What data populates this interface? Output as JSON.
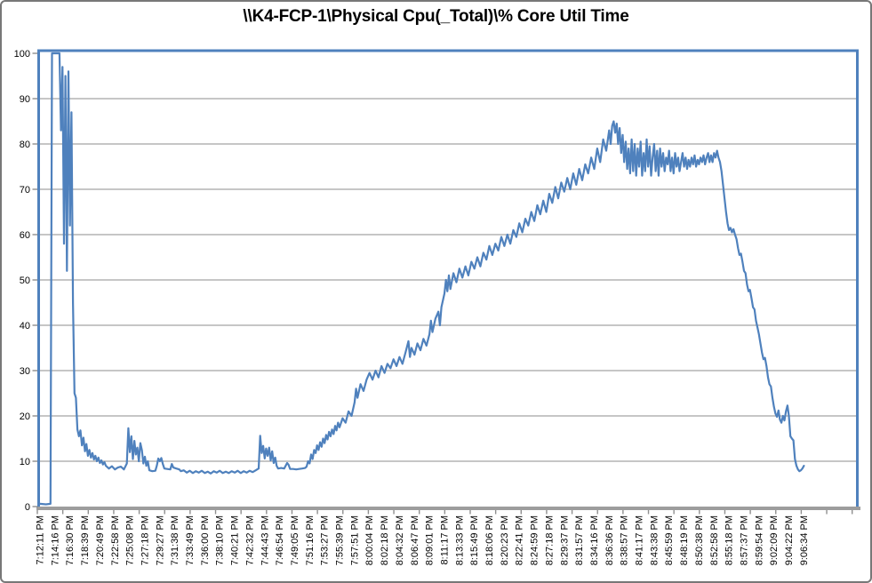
{
  "colors": {
    "series": "#4F81BD",
    "plot_border": "#4F81BD",
    "gridline": "#A3A3A3",
    "axis_bar": "#9D9D9D",
    "tick": "#8F8F8F",
    "outer_border": "#777777",
    "text": "#000000",
    "background": "#FFFFFF"
  },
  "chart_data": {
    "type": "line",
    "title": "\\\\K4-FCP-1\\Physical Cpu(_Total)\\% Core Util Time",
    "xlabel": "",
    "ylabel": "",
    "legend": "none",
    "grid": true,
    "ylim": [
      0,
      100
    ],
    "ytick_step": 10,
    "yticks": [
      0,
      10,
      20,
      30,
      40,
      50,
      60,
      70,
      80,
      90,
      100
    ],
    "x_labels": [
      "7:12:11 PM",
      "7:14:16 PM",
      "7:16:30 PM",
      "7:18:39 PM",
      "7:20:49 PM",
      "7:22:58 PM",
      "7:25:08 PM",
      "7:27:18 PM",
      "7:29:27 PM",
      "7:31:38 PM",
      "7:33:49 PM",
      "7:36:00 PM",
      "7:38:10 PM",
      "7:40:21 PM",
      "7:42:32 PM",
      "7:44:43 PM",
      "7:46:54 PM",
      "7:49:05 PM",
      "7:51:16 PM",
      "7:53:27 PM",
      "7:55:39 PM",
      "7:57:51 PM",
      "8:00:04 PM",
      "8:02:18 PM",
      "8:04:32 PM",
      "8:06:47 PM",
      "8:09:01 PM",
      "8:11:17 PM",
      "8:13:33 PM",
      "8:15:49 PM",
      "8:18:06 PM",
      "8:20:23 PM",
      "8:22:41 PM",
      "8:24:59 PM",
      "8:27:18 PM",
      "8:29:37 PM",
      "8:31:57 PM",
      "8:34:16 PM",
      "8:36:36 PM",
      "8:38:57 PM",
      "8:41:17 PM",
      "8:43:38 PM",
      "8:45:59 PM",
      "8:48:19 PM",
      "8:50:38 PM",
      "8:52:58 PM",
      "8:55:18 PM",
      "8:57:37 PM",
      "8:59:54 PM",
      "9:02:09 PM",
      "9:04:22 PM",
      "9:06:34 PM"
    ],
    "points_per_label_interval": 10,
    "total_category_span": 547,
    "x_tick_mark_interval_categories": 17,
    "points": [
      [
        0,
        0.6
      ],
      [
        4,
        0.5
      ],
      [
        7,
        0.6
      ],
      [
        8,
        100
      ],
      [
        13,
        100
      ],
      [
        14,
        83
      ],
      [
        15,
        97
      ],
      [
        16,
        58
      ],
      [
        17,
        95
      ],
      [
        18,
        52
      ],
      [
        19,
        96
      ],
      [
        20,
        62
      ],
      [
        21,
        87
      ],
      [
        22,
        45
      ],
      [
        23,
        25
      ],
      [
        24,
        24
      ],
      [
        25,
        17
      ],
      [
        26,
        15.5
      ],
      [
        27,
        16.8
      ],
      [
        28,
        13.5
      ],
      [
        29,
        15.2
      ],
      [
        30,
        12.2
      ],
      [
        31,
        13.8
      ],
      [
        32,
        11.2
      ],
      [
        33,
        12.5
      ],
      [
        34,
        10.8
      ],
      [
        35,
        11.8
      ],
      [
        36,
        10.4
      ],
      [
        37,
        11.2
      ],
      [
        38,
        10
      ],
      [
        39,
        10.8
      ],
      [
        40,
        9.6
      ],
      [
        41,
        10.2
      ],
      [
        42,
        9.3
      ],
      [
        43,
        9.8
      ],
      [
        44,
        9
      ],
      [
        46,
        8.4
      ],
      [
        48,
        8.9
      ],
      [
        50,
        8.2
      ],
      [
        52,
        8.6
      ],
      [
        54,
        8.8
      ],
      [
        56,
        8.2
      ],
      [
        58,
        9.5
      ],
      [
        59,
        17.3
      ],
      [
        60,
        12
      ],
      [
        61,
        15.5
      ],
      [
        62,
        10.5
      ],
      [
        63,
        14.5
      ],
      [
        64,
        11.5
      ],
      [
        65,
        13
      ],
      [
        66,
        10
      ],
      [
        67,
        14
      ],
      [
        68,
        12.5
      ],
      [
        69,
        9.5
      ],
      [
        70,
        11
      ],
      [
        71,
        9
      ],
      [
        72,
        10
      ],
      [
        73,
        8
      ],
      [
        75,
        7.8
      ],
      [
        77,
        7.9
      ],
      [
        78,
        9
      ],
      [
        79,
        10.6
      ],
      [
        80,
        10
      ],
      [
        81,
        10.7
      ],
      [
        82,
        9.4
      ],
      [
        83,
        8.4
      ],
      [
        85,
        8.3
      ],
      [
        87,
        8.2
      ],
      [
        88,
        9.4
      ],
      [
        89,
        8.6
      ],
      [
        91,
        8.4
      ],
      [
        93,
        8.2
      ],
      [
        94,
        7.8
      ],
      [
        96,
        8
      ],
      [
        98,
        7.5
      ],
      [
        100,
        7.9
      ],
      [
        102,
        7.4
      ],
      [
        104,
        7.8
      ],
      [
        106,
        7.5
      ],
      [
        108,
        7.9
      ],
      [
        110,
        7.4
      ],
      [
        112,
        7.7
      ],
      [
        114,
        7.3
      ],
      [
        116,
        7.8
      ],
      [
        118,
        7.5
      ],
      [
        120,
        7.9
      ],
      [
        122,
        7.4
      ],
      [
        124,
        7.7
      ],
      [
        126,
        7.4
      ],
      [
        128,
        7.8
      ],
      [
        130,
        7.5
      ],
      [
        132,
        7.9
      ],
      [
        134,
        7.4
      ],
      [
        136,
        7.8
      ],
      [
        138,
        7.5
      ],
      [
        140,
        7.9
      ],
      [
        142,
        7.6
      ],
      [
        144,
        8
      ],
      [
        145,
        8.2
      ],
      [
        146,
        8.4
      ],
      [
        147,
        15.6
      ],
      [
        148,
        11.8
      ],
      [
        149,
        13.4
      ],
      [
        150,
        10.6
      ],
      [
        151,
        12.8
      ],
      [
        152,
        11.2
      ],
      [
        153,
        13
      ],
      [
        154,
        10.2
      ],
      [
        155,
        12.2
      ],
      [
        156,
        9.6
      ],
      [
        157,
        10.8
      ],
      [
        158,
        9
      ],
      [
        159,
        8.4
      ],
      [
        161,
        8.5
      ],
      [
        163,
        8.4
      ],
      [
        165,
        9.6
      ],
      [
        166,
        9.2
      ],
      [
        167,
        8.3
      ],
      [
        169,
        8.3
      ],
      [
        171,
        8.2
      ],
      [
        173,
        8.3
      ],
      [
        175,
        8.4
      ],
      [
        177,
        8.5
      ],
      [
        178,
        8.8
      ],
      [
        179,
        10
      ],
      [
        180,
        9.5
      ],
      [
        181,
        11.5
      ],
      [
        182,
        10.5
      ],
      [
        183,
        12.5
      ],
      [
        184,
        11.8
      ],
      [
        185,
        13.5
      ],
      [
        186,
        12.5
      ],
      [
        187,
        14.2
      ],
      [
        188,
        13.2
      ],
      [
        189,
        15
      ],
      [
        190,
        14
      ],
      [
        191,
        15.8
      ],
      [
        192,
        14.8
      ],
      [
        193,
        16.5
      ],
      [
        194,
        15.5
      ],
      [
        195,
        17
      ],
      [
        196,
        16
      ],
      [
        197,
        17.8
      ],
      [
        198,
        16.8
      ],
      [
        199,
        18.5
      ],
      [
        200,
        17.5
      ],
      [
        202,
        19.5
      ],
      [
        204,
        18.5
      ],
      [
        206,
        21
      ],
      [
        208,
        20
      ],
      [
        210,
        23
      ],
      [
        211,
        26
      ],
      [
        212,
        24
      ],
      [
        214,
        27
      ],
      [
        216,
        25.5
      ],
      [
        218,
        28
      ],
      [
        220,
        29.5
      ],
      [
        222,
        28
      ],
      [
        224,
        30
      ],
      [
        226,
        28.5
      ],
      [
        228,
        31
      ],
      [
        230,
        29.5
      ],
      [
        232,
        31.5
      ],
      [
        234,
        30.5
      ],
      [
        236,
        32.5
      ],
      [
        238,
        31
      ],
      [
        240,
        33
      ],
      [
        242,
        31.5
      ],
      [
        244,
        34
      ],
      [
        246,
        36.5
      ],
      [
        247,
        33
      ],
      [
        248,
        35
      ],
      [
        250,
        33.5
      ],
      [
        252,
        36
      ],
      [
        254,
        34.5
      ],
      [
        256,
        37
      ],
      [
        258,
        35.5
      ],
      [
        260,
        38
      ],
      [
        261,
        41
      ],
      [
        262,
        38.5
      ],
      [
        264,
        41.5
      ],
      [
        266,
        43
      ],
      [
        267,
        40
      ],
      [
        268,
        44
      ],
      [
        270,
        47
      ],
      [
        271,
        50
      ],
      [
        272,
        47.5
      ],
      [
        273,
        51
      ],
      [
        274,
        48
      ],
      [
        276,
        51.5
      ],
      [
        278,
        49.5
      ],
      [
        280,
        52.5
      ],
      [
        282,
        50.5
      ],
      [
        284,
        53
      ],
      [
        286,
        51
      ],
      [
        288,
        54
      ],
      [
        290,
        52.5
      ],
      [
        292,
        55
      ],
      [
        294,
        53
      ],
      [
        296,
        56
      ],
      [
        298,
        54.5
      ],
      [
        300,
        57.5
      ],
      [
        302,
        55.5
      ],
      [
        304,
        58
      ],
      [
        306,
        56.5
      ],
      [
        308,
        59.5
      ],
      [
        310,
        57.5
      ],
      [
        312,
        60
      ],
      [
        314,
        58
      ],
      [
        316,
        61
      ],
      [
        318,
        59.5
      ],
      [
        320,
        62.5
      ],
      [
        322,
        60.5
      ],
      [
        324,
        63.5
      ],
      [
        326,
        62
      ],
      [
        328,
        65
      ],
      [
        330,
        63
      ],
      [
        332,
        66.5
      ],
      [
        334,
        64.5
      ],
      [
        336,
        67.5
      ],
      [
        338,
        65
      ],
      [
        340,
        69
      ],
      [
        342,
        67
      ],
      [
        344,
        70.5
      ],
      [
        346,
        68
      ],
      [
        348,
        71.5
      ],
      [
        350,
        69.5
      ],
      [
        352,
        72.5
      ],
      [
        354,
        70
      ],
      [
        356,
        73.5
      ],
      [
        358,
        71
      ],
      [
        360,
        74.5
      ],
      [
        362,
        72
      ],
      [
        364,
        75.5
      ],
      [
        366,
        73.5
      ],
      [
        368,
        77
      ],
      [
        370,
        74.5
      ],
      [
        372,
        79
      ],
      [
        374,
        76
      ],
      [
        376,
        81
      ],
      [
        378,
        78.5
      ],
      [
        380,
        83
      ],
      [
        381,
        80
      ],
      [
        382,
        84
      ],
      [
        383,
        85
      ],
      [
        384,
        82.5
      ],
      [
        385,
        84.5
      ],
      [
        386,
        80
      ],
      [
        387,
        83.5
      ],
      [
        388,
        78
      ],
      [
        389,
        82
      ],
      [
        390,
        76
      ],
      [
        391,
        80.5
      ],
      [
        392,
        74.5
      ],
      [
        393,
        79
      ],
      [
        394,
        73.5
      ],
      [
        395,
        81
      ],
      [
        396,
        74
      ],
      [
        397,
        80
      ],
      [
        398,
        73
      ],
      [
        399,
        79
      ],
      [
        400,
        75
      ],
      [
        401,
        80.5
      ],
      [
        402,
        73
      ],
      [
        403,
        78
      ],
      [
        404,
        74
      ],
      [
        405,
        81
      ],
      [
        406,
        75
      ],
      [
        407,
        79.5
      ],
      [
        408,
        73
      ],
      [
        409,
        77
      ],
      [
        410,
        80
      ],
      [
        411,
        74
      ],
      [
        412,
        78.5
      ],
      [
        413,
        73
      ],
      [
        414,
        79
      ],
      [
        415,
        75
      ],
      [
        416,
        78
      ],
      [
        417,
        74
      ],
      [
        418,
        77
      ],
      [
        419,
        75.5
      ],
      [
        420,
        78.5
      ],
      [
        421,
        74
      ],
      [
        422,
        77
      ],
      [
        423,
        73.5
      ],
      [
        424,
        78
      ],
      [
        425,
        75
      ],
      [
        426,
        77
      ],
      [
        427,
        74
      ],
      [
        428,
        76
      ],
      [
        429,
        78
      ],
      [
        430,
        75
      ],
      [
        431,
        77
      ],
      [
        432,
        74.5
      ],
      [
        433,
        76.5
      ],
      [
        434,
        75
      ],
      [
        435,
        77
      ],
      [
        436,
        75.5
      ],
      [
        437,
        77.5
      ],
      [
        438,
        75
      ],
      [
        439,
        76.5
      ],
      [
        440,
        75.5
      ],
      [
        441,
        77
      ],
      [
        442,
        76
      ],
      [
        443,
        77.5
      ],
      [
        444,
        75.5
      ],
      [
        445,
        77
      ],
      [
        446,
        78
      ],
      [
        447,
        76
      ],
      [
        448,
        77.5
      ],
      [
        449,
        76
      ],
      [
        450,
        78
      ],
      [
        451,
        77
      ],
      [
        452,
        78.5
      ],
      [
        453,
        77
      ],
      [
        454,
        76
      ],
      [
        455,
        74
      ],
      [
        456,
        71
      ],
      [
        457,
        68
      ],
      [
        458,
        65
      ],
      [
        459,
        62.5
      ],
      [
        460,
        61
      ],
      [
        461,
        61.5
      ],
      [
        462,
        60.5
      ],
      [
        463,
        61.2
      ],
      [
        464,
        60
      ],
      [
        465,
        59
      ],
      [
        466,
        57
      ],
      [
        467,
        55.5
      ],
      [
        468,
        55.8
      ],
      [
        469,
        54
      ],
      [
        470,
        52
      ],
      [
        471,
        51.5
      ],
      [
        472,
        49
      ],
      [
        473,
        47.5
      ],
      [
        474,
        47.8
      ],
      [
        475,
        46
      ],
      [
        476,
        44
      ],
      [
        477,
        43.5
      ],
      [
        478,
        41
      ],
      [
        479,
        39.5
      ],
      [
        480,
        38
      ],
      [
        481,
        36
      ],
      [
        482,
        34
      ],
      [
        483,
        32.5
      ],
      [
        484,
        32.8
      ],
      [
        485,
        31
      ],
      [
        486,
        28.5
      ],
      [
        487,
        27
      ],
      [
        488,
        26.5
      ],
      [
        489,
        24
      ],
      [
        490,
        22
      ],
      [
        491,
        20.5
      ],
      [
        492,
        19.8
      ],
      [
        493,
        21.2
      ],
      [
        494,
        19.2
      ],
      [
        495,
        18.5
      ],
      [
        496,
        20
      ],
      [
        497,
        19
      ],
      [
        498,
        21
      ],
      [
        499,
        22.3
      ],
      [
        500,
        20
      ],
      [
        501,
        15.5
      ],
      [
        502,
        15
      ],
      [
        503,
        14.6
      ],
      [
        504,
        10.5
      ],
      [
        505,
        9
      ],
      [
        506,
        8.2
      ],
      [
        507,
        7.8
      ],
      [
        508,
        8
      ],
      [
        509,
        8.4
      ],
      [
        510,
        9
      ]
    ]
  }
}
